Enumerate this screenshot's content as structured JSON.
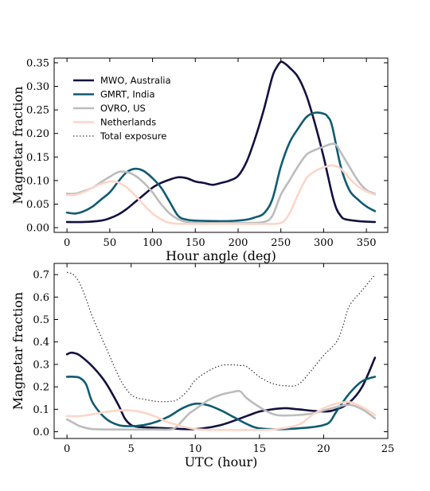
{
  "chart_data": [
    {
      "type": "line",
      "xlabel": "Hour angle (deg)",
      "ylabel": "Magnetar fraction",
      "xlim": [
        -15,
        375
      ],
      "ylim": [
        -0.01,
        0.36
      ],
      "xticks": [
        0,
        50,
        100,
        150,
        200,
        250,
        300,
        350
      ],
      "yticks": [
        0.0,
        0.05,
        0.1,
        0.15,
        0.2,
        0.25,
        0.3,
        0.35
      ],
      "ytick_labels": [
        "0.00",
        "0.05",
        "0.10",
        "0.15",
        "0.20",
        "0.25",
        "0.30",
        "0.35"
      ],
      "legend": "upper-left",
      "series": [
        {
          "name": "MWO, Australia",
          "color": "#13103f",
          "style": "solid",
          "x": [
            0,
            20,
            40,
            50,
            60,
            70,
            80,
            90,
            100,
            110,
            120,
            130,
            140,
            150,
            160,
            170,
            180,
            190,
            200,
            210,
            220,
            230,
            240,
            245,
            250,
            255,
            260,
            270,
            280,
            290,
            300,
            310,
            315,
            320,
            325,
            340,
            360
          ],
          "y": [
            0.012,
            0.012,
            0.015,
            0.02,
            0.028,
            0.04,
            0.055,
            0.07,
            0.085,
            0.095,
            0.102,
            0.107,
            0.105,
            0.098,
            0.095,
            0.091,
            0.095,
            0.1,
            0.11,
            0.14,
            0.19,
            0.25,
            0.32,
            0.34,
            0.352,
            0.348,
            0.34,
            0.32,
            0.28,
            0.22,
            0.15,
            0.07,
            0.04,
            0.025,
            0.018,
            0.014,
            0.012
          ]
        },
        {
          "name": "GMRT, India",
          "color": "#0f5b72",
          "style": "solid",
          "x": [
            0,
            10,
            20,
            30,
            40,
            50,
            60,
            70,
            80,
            90,
            100,
            110,
            120,
            130,
            140,
            150,
            170,
            190,
            210,
            220,
            230,
            240,
            250,
            260,
            270,
            280,
            290,
            300,
            305,
            310,
            320,
            330,
            340,
            350,
            360
          ],
          "y": [
            0.032,
            0.03,
            0.035,
            0.045,
            0.06,
            0.075,
            0.098,
            0.118,
            0.125,
            0.12,
            0.105,
            0.085,
            0.055,
            0.025,
            0.017,
            0.015,
            0.014,
            0.014,
            0.017,
            0.022,
            0.03,
            0.06,
            0.13,
            0.18,
            0.21,
            0.235,
            0.244,
            0.242,
            0.235,
            0.215,
            0.13,
            0.08,
            0.06,
            0.045,
            0.035
          ]
        },
        {
          "name": "OVRO, US",
          "color": "#bcbcbc",
          "style": "solid",
          "x": [
            0,
            10,
            20,
            30,
            40,
            50,
            60,
            70,
            80,
            90,
            100,
            110,
            120,
            130,
            140,
            160,
            190,
            210,
            230,
            240,
            250,
            260,
            270,
            280,
            290,
            300,
            310,
            315,
            320,
            330,
            340,
            350,
            360
          ],
          "y": [
            0.072,
            0.072,
            0.078,
            0.085,
            0.097,
            0.108,
            0.118,
            0.118,
            0.11,
            0.095,
            0.075,
            0.05,
            0.03,
            0.018,
            0.012,
            0.01,
            0.01,
            0.01,
            0.012,
            0.025,
            0.07,
            0.1,
            0.13,
            0.155,
            0.165,
            0.172,
            0.178,
            0.175,
            0.16,
            0.13,
            0.1,
            0.08,
            0.072
          ]
        },
        {
          "name": "Netherlands",
          "color": "#fcd6c8",
          "style": "solid",
          "x": [
            0,
            10,
            20,
            30,
            40,
            50,
            60,
            70,
            80,
            90,
            100,
            110,
            120,
            140,
            170,
            200,
            230,
            250,
            260,
            270,
            280,
            290,
            300,
            310,
            320,
            330,
            340,
            350,
            360
          ],
          "y": [
            0.069,
            0.07,
            0.076,
            0.085,
            0.093,
            0.098,
            0.096,
            0.085,
            0.068,
            0.048,
            0.03,
            0.018,
            0.01,
            0.008,
            0.008,
            0.008,
            0.008,
            0.01,
            0.03,
            0.07,
            0.105,
            0.12,
            0.128,
            0.132,
            0.125,
            0.105,
            0.088,
            0.077,
            0.07
          ]
        },
        {
          "name": "Total exposure",
          "color": "#333333",
          "style": "dotted",
          "x": [],
          "y": []
        }
      ]
    },
    {
      "type": "line",
      "xlabel": "UTC (hour)",
      "ylabel": "Magnetar fraction",
      "xlim": [
        -1,
        25
      ],
      "ylim": [
        -0.03,
        0.75
      ],
      "xticks": [
        0,
        5,
        10,
        15,
        20,
        25
      ],
      "yticks": [
        0.0,
        0.1,
        0.2,
        0.3,
        0.4,
        0.5,
        0.6,
        0.7
      ],
      "ytick_labels": [
        "0.0",
        "0.1",
        "0.2",
        "0.3",
        "0.4",
        "0.5",
        "0.6",
        "0.7"
      ],
      "series": [
        {
          "name": "MWO, Australia",
          "color": "#13103f",
          "style": "solid",
          "x": [
            0,
            0.3,
            0.6,
            1,
            2,
            3,
            4,
            4.5,
            5,
            5.5,
            6,
            8,
            10,
            12,
            14,
            15,
            16,
            17,
            18,
            20,
            21,
            22,
            23,
            24
          ],
          "y": [
            0.345,
            0.352,
            0.35,
            0.34,
            0.29,
            0.22,
            0.12,
            0.06,
            0.03,
            0.022,
            0.02,
            0.015,
            0.012,
            0.03,
            0.07,
            0.09,
            0.1,
            0.105,
            0.1,
            0.09,
            0.1,
            0.13,
            0.2,
            0.33
          ]
        },
        {
          "name": "GMRT, India",
          "color": "#0f5b72",
          "style": "solid",
          "x": [
            0,
            0.5,
            1,
            1.5,
            2,
            3,
            4,
            5,
            6,
            7,
            8,
            9,
            10,
            11,
            12,
            13,
            14,
            15,
            17,
            19,
            20,
            20.5,
            21,
            22,
            23,
            24
          ],
          "y": [
            0.245,
            0.245,
            0.24,
            0.21,
            0.13,
            0.06,
            0.03,
            0.025,
            0.03,
            0.045,
            0.07,
            0.105,
            0.125,
            0.118,
            0.095,
            0.065,
            0.035,
            0.015,
            0.012,
            0.02,
            0.03,
            0.045,
            0.09,
            0.17,
            0.225,
            0.245
          ]
        },
        {
          "name": "OVRO, US",
          "color": "#bcbcbc",
          "style": "solid",
          "x": [
            0,
            0.5,
            1,
            2,
            4,
            6,
            7,
            8,
            8.5,
            9,
            9.5,
            10,
            11,
            12,
            13,
            13.5,
            14,
            15,
            16,
            17,
            19,
            20,
            21,
            22,
            23,
            24
          ],
          "y": [
            0.055,
            0.04,
            0.025,
            0.012,
            0.01,
            0.01,
            0.01,
            0.01,
            0.02,
            0.05,
            0.08,
            0.1,
            0.14,
            0.165,
            0.178,
            0.18,
            0.15,
            0.11,
            0.08,
            0.072,
            0.08,
            0.095,
            0.11,
            0.12,
            0.1,
            0.06
          ]
        },
        {
          "name": "Netherlands",
          "color": "#fcd6c8",
          "style": "solid",
          "x": [
            0,
            1,
            2,
            3,
            4,
            5,
            6,
            7,
            8,
            10,
            12,
            14,
            16,
            18,
            19,
            20,
            21,
            22,
            23,
            24
          ],
          "y": [
            0.07,
            0.07,
            0.078,
            0.088,
            0.095,
            0.095,
            0.085,
            0.065,
            0.04,
            0.012,
            0.008,
            0.008,
            0.01,
            0.03,
            0.07,
            0.105,
            0.125,
            0.132,
            0.11,
            0.075
          ]
        },
        {
          "name": "Total exposure",
          "color": "#333333",
          "style": "dotted",
          "x": [
            0,
            0.5,
            1,
            1.5,
            2,
            3,
            4,
            4.5,
            5,
            5.5,
            6,
            7,
            8,
            8.5,
            9,
            9.5,
            10,
            11,
            12,
            13,
            13.5,
            14,
            15,
            16,
            17,
            18,
            19,
            20,
            21,
            21.5,
            22,
            23,
            24
          ],
          "y": [
            0.71,
            0.7,
            0.66,
            0.59,
            0.51,
            0.38,
            0.25,
            0.2,
            0.165,
            0.15,
            0.145,
            0.135,
            0.135,
            0.14,
            0.16,
            0.19,
            0.23,
            0.27,
            0.295,
            0.298,
            0.295,
            0.29,
            0.245,
            0.215,
            0.205,
            0.21,
            0.27,
            0.34,
            0.4,
            0.47,
            0.56,
            0.63,
            0.7
          ]
        }
      ]
    }
  ]
}
